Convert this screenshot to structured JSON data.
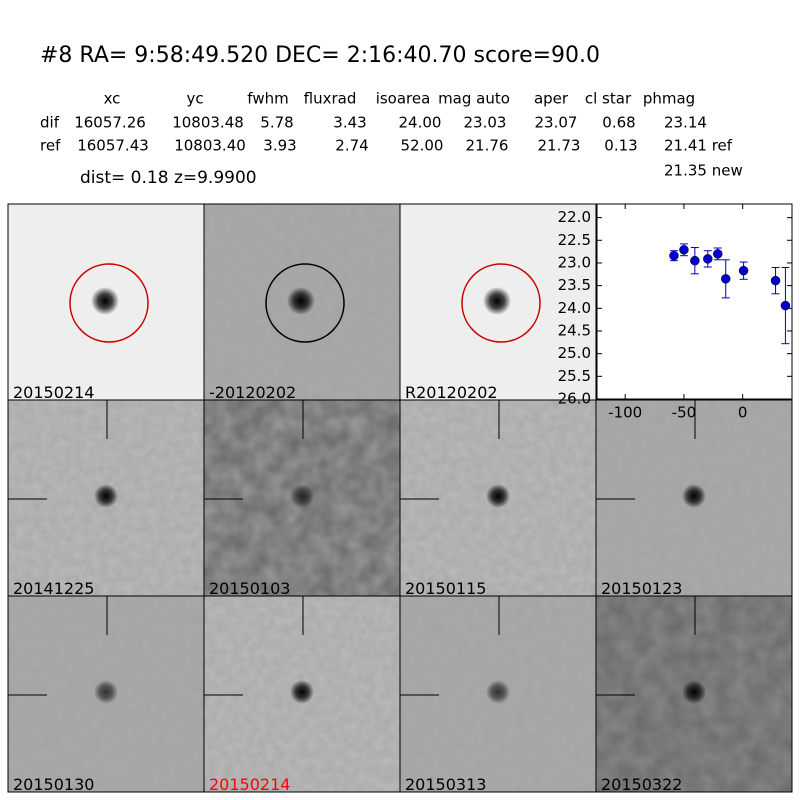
{
  "header": {
    "title": "#8   RA= 9:58:49.520 DEC= 2:16:40.70      score=90.0",
    "columns": [
      "xc",
      "yc",
      "fwhm",
      "fluxrad",
      "isoarea",
      "mag auto",
      "aper",
      "cl star",
      "phmag"
    ],
    "rows": [
      {
        "label": "dif",
        "cells": [
          "16057.26",
          "10803.48",
          "5.78",
          "3.43",
          "24.00",
          "23.03",
          "23.07",
          "0.68",
          "23.14"
        ]
      },
      {
        "label": "ref",
        "cells": [
          "16057.43",
          "10803.40",
          "3.93",
          "2.74",
          "52.00",
          "21.76",
          "21.73",
          "0.13",
          "21.41 ref"
        ]
      }
    ],
    "extra": "21.35 new",
    "dist": "dist=  0.18      z=9.9900"
  },
  "cells": [
    {
      "label": "20150214"
    },
    {
      "label": "-20120202"
    },
    {
      "label": "R20120202"
    },
    {
      "label": "20141225"
    },
    {
      "label": "20150103"
    },
    {
      "label": "20150115"
    },
    {
      "label": "20150123"
    },
    {
      "label": "20150130"
    },
    {
      "label": "20150214"
    },
    {
      "label": "20150313"
    },
    {
      "label": "20150322"
    }
  ],
  "chart_data": {
    "type": "errorbar",
    "x": [
      -58.5,
      -50,
      -40.7,
      -29.7,
      -21.2,
      -14.4,
      0.8,
      28,
      36.4
    ],
    "values": [
      22.84,
      22.71,
      22.95,
      22.91,
      22.8,
      23.35,
      23.17,
      23.39,
      23.94
    ],
    "errors": [
      0.11,
      0.13,
      0.29,
      0.18,
      0.13,
      0.42,
      0.19,
      0.29,
      0.84
    ],
    "color": "#0000cc",
    "xlim": [
      -124,
      42
    ],
    "xticks": [
      -100,
      -50,
      0
    ],
    "ylim": [
      26.0,
      21.7
    ],
    "yticks": [
      {
        "value": 22,
        "label": "22.0"
      },
      {
        "value": 22.5,
        "label": "22.5"
      },
      {
        "value": 23,
        "label": "23.0"
      },
      {
        "value": 23.5,
        "label": "23.5"
      },
      {
        "value": 24,
        "label": "24.0"
      },
      {
        "value": 24.5,
        "label": "24.5"
      },
      {
        "value": 25,
        "label": "25.0"
      },
      {
        "value": 25.5,
        "label": "25.5"
      },
      {
        "value": 26,
        "label": "26.0"
      }
    ],
    "grid": false
  }
}
